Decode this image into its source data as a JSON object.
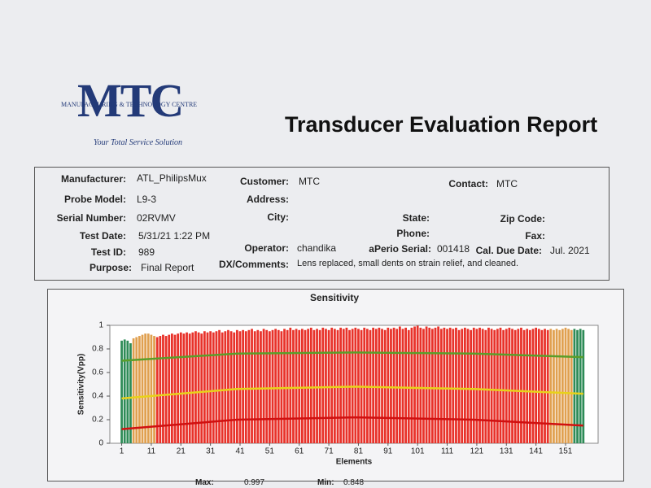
{
  "header": {
    "logo": "MTC",
    "company": "MANUFACTURING & TECHNOLOGY CENTRE",
    "tagline": "Your Total Service Solution",
    "title": "Transducer Evaluation Report"
  },
  "info": {
    "manufacturer": {
      "label": "Manufacturer:",
      "value": "ATL_PhilipsMux"
    },
    "customer": {
      "label": "Customer:",
      "value": "MTC"
    },
    "contact": {
      "label": "Contact:",
      "value": "MTC"
    },
    "probe_model": {
      "label": "Probe Model:",
      "value": "L9-3"
    },
    "address": {
      "label": "Address:"
    },
    "serial_number": {
      "label": "Serial Number:",
      "value": "02RVMV"
    },
    "city": {
      "label": "City:"
    },
    "state": {
      "label": "State:"
    },
    "zip": {
      "label": "Zip Code:"
    },
    "test_date": {
      "label": "Test Date:",
      "value": "5/31/21 1:22 PM"
    },
    "phone": {
      "label": "Phone:"
    },
    "fax": {
      "label": "Fax:"
    },
    "test_id": {
      "label": "Test ID:",
      "value": "989"
    },
    "operator": {
      "label": "Operator:",
      "value": "chandika"
    },
    "aperio_serial": {
      "label": "aPerio Serial:",
      "value": "001418"
    },
    "cal_due": {
      "label": "Cal. Due Date:",
      "value": "Jul. 2021"
    },
    "purpose": {
      "label": "Purpose:",
      "value": "Final Report"
    },
    "comments": {
      "label": "DX/Comments:",
      "value": "Lens replaced, small dents on strain relief, and cleaned."
    }
  },
  "chart_data": {
    "type": "bar",
    "title": "Sensitivity",
    "x_label": "Elements",
    "y_label": "Sensitivity(Vpp)",
    "xlim": [
      -3,
      162
    ],
    "ylim": [
      0,
      1
    ],
    "yticks": [
      0,
      0.2,
      0.4,
      0.6,
      0.8,
      1
    ],
    "xticks": [
      1,
      11,
      21,
      31,
      41,
      51,
      61,
      71,
      81,
      91,
      101,
      111,
      121,
      131,
      141,
      151
    ],
    "x": [
      1,
      2,
      3,
      4,
      5,
      6,
      7,
      8,
      9,
      10,
      11,
      12,
      13,
      14,
      15,
      16,
      17,
      18,
      19,
      20,
      21,
      22,
      23,
      24,
      25,
      26,
      27,
      28,
      29,
      30,
      31,
      32,
      33,
      34,
      35,
      36,
      37,
      38,
      39,
      40,
      41,
      42,
      43,
      44,
      45,
      46,
      47,
      48,
      49,
      50,
      51,
      52,
      53,
      54,
      55,
      56,
      57,
      58,
      59,
      60,
      61,
      62,
      63,
      64,
      65,
      66,
      67,
      68,
      69,
      70,
      71,
      72,
      73,
      74,
      75,
      76,
      77,
      78,
      79,
      80,
      81,
      82,
      83,
      84,
      85,
      86,
      87,
      88,
      89,
      90,
      91,
      92,
      93,
      94,
      95,
      96,
      97,
      98,
      99,
      100,
      101,
      102,
      103,
      104,
      105,
      106,
      107,
      108,
      109,
      110,
      111,
      112,
      113,
      114,
      115,
      116,
      117,
      118,
      119,
      120,
      121,
      122,
      123,
      124,
      125,
      126,
      127,
      128,
      129,
      130,
      131,
      132,
      133,
      134,
      135,
      136,
      137,
      138,
      139,
      140,
      141,
      142,
      143,
      144,
      145,
      146,
      147,
      148,
      149,
      150,
      151,
      152,
      153,
      154,
      155,
      156,
      157
    ],
    "values": [
      0.87,
      0.88,
      0.87,
      0.848,
      0.89,
      0.9,
      0.91,
      0.92,
      0.93,
      0.93,
      0.92,
      0.91,
      0.9,
      0.91,
      0.92,
      0.91,
      0.92,
      0.93,
      0.92,
      0.93,
      0.94,
      0.93,
      0.94,
      0.93,
      0.94,
      0.95,
      0.94,
      0.93,
      0.95,
      0.94,
      0.95,
      0.94,
      0.95,
      0.96,
      0.94,
      0.95,
      0.96,
      0.95,
      0.94,
      0.96,
      0.95,
      0.96,
      0.95,
      0.96,
      0.97,
      0.95,
      0.96,
      0.95,
      0.97,
      0.96,
      0.95,
      0.96,
      0.97,
      0.96,
      0.95,
      0.97,
      0.96,
      0.98,
      0.96,
      0.97,
      0.96,
      0.97,
      0.96,
      0.97,
      0.98,
      0.96,
      0.97,
      0.96,
      0.98,
      0.97,
      0.96,
      0.98,
      0.97,
      0.96,
      0.98,
      0.97,
      0.98,
      0.96,
      0.97,
      0.98,
      0.97,
      0.96,
      0.98,
      0.97,
      0.96,
      0.98,
      0.97,
      0.98,
      0.97,
      0.96,
      0.98,
      0.97,
      0.98,
      0.97,
      0.99,
      0.97,
      0.98,
      0.96,
      0.98,
      0.99,
      0.997,
      0.98,
      0.97,
      0.99,
      0.98,
      0.97,
      0.98,
      0.99,
      0.97,
      0.98,
      0.97,
      0.98,
      0.97,
      0.98,
      0.96,
      0.97,
      0.98,
      0.97,
      0.96,
      0.98,
      0.97,
      0.98,
      0.97,
      0.96,
      0.98,
      0.97,
      0.96,
      0.97,
      0.98,
      0.96,
      0.97,
      0.98,
      0.97,
      0.96,
      0.97,
      0.98,
      0.96,
      0.97,
      0.96,
      0.97,
      0.98,
      0.97,
      0.96,
      0.97,
      0.96,
      0.97,
      0.96,
      0.97,
      0.96,
      0.97,
      0.98,
      0.97,
      0.96,
      0.97,
      0.96,
      0.97,
      0.96
    ],
    "color_ranges": [
      {
        "from": 1,
        "to": 4,
        "color": "#2e8b57"
      },
      {
        "from": 5,
        "to": 12,
        "color": "#e0a050"
      },
      {
        "from": 13,
        "to": 145,
        "color": "#e8322a"
      },
      {
        "from": 146,
        "to": 153,
        "color": "#e0a050"
      },
      {
        "from": 154,
        "to": 157,
        "color": "#2e8b57"
      }
    ],
    "threshold_lines": [
      {
        "color": "#5a9e2a",
        "x": [
          1,
          40,
          80,
          120,
          157
        ],
        "values": [
          0.7,
          0.76,
          0.77,
          0.76,
          0.73
        ]
      },
      {
        "color": "#e8d21a",
        "x": [
          1,
          40,
          80,
          120,
          157
        ],
        "values": [
          0.38,
          0.46,
          0.48,
          0.46,
          0.42
        ]
      },
      {
        "color": "#d01010",
        "x": [
          1,
          40,
          80,
          120,
          157
        ],
        "values": [
          0.12,
          0.2,
          0.22,
          0.2,
          0.15
        ]
      }
    ]
  },
  "footer": {
    "max": {
      "label": "Max:",
      "value": "0.997"
    },
    "min": {
      "label": "Min:",
      "value": "0.848"
    }
  }
}
